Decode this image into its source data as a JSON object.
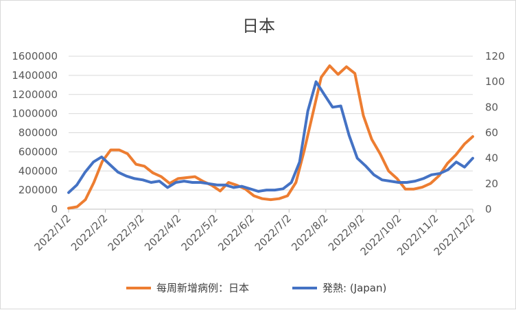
{
  "chart_data": {
    "type": "line",
    "title": "日本",
    "x_ticks": [
      "2022/1/2",
      "2022/2/2",
      "2022/3/2",
      "2022/4/2",
      "2022/5/2",
      "2022/6/2",
      "2022/7/2",
      "2022/8/2",
      "2022/9/2",
      "2022/10/2",
      "2022/11/2",
      "2022/12/2"
    ],
    "y_left": {
      "min": 0,
      "max": 1600000,
      "step": 200000,
      "ticks": [
        "0",
        "200000",
        "400000",
        "600000",
        "800000",
        "1000000",
        "1200000",
        "1400000",
        "1600000"
      ]
    },
    "y_right": {
      "min": 0,
      "max": 120,
      "step": 20,
      "ticks": [
        "0",
        "20",
        "40",
        "60",
        "80",
        "100",
        "120"
      ]
    },
    "grid": true,
    "legend_position": "bottom",
    "series": [
      {
        "name": "每周新增病例：日本",
        "axis": "left",
        "color": "#ED7D31",
        "values": [
          10000,
          25000,
          100000,
          280000,
          500000,
          620000,
          620000,
          580000,
          470000,
          450000,
          380000,
          340000,
          270000,
          320000,
          330000,
          340000,
          290000,
          250000,
          190000,
          280000,
          250000,
          210000,
          140000,
          110000,
          100000,
          110000,
          140000,
          280000,
          620000,
          1000000,
          1380000,
          1500000,
          1410000,
          1490000,
          1420000,
          980000,
          730000,
          580000,
          400000,
          320000,
          210000,
          210000,
          230000,
          270000,
          350000,
          480000,
          570000,
          680000,
          760000
        ]
      },
      {
        "name": "発熱: (Japan)",
        "axis": "right",
        "color": "#4472C4",
        "values": [
          13,
          19,
          29,
          37,
          41,
          35,
          29,
          26,
          24,
          23,
          21,
          22,
          17,
          21,
          22,
          21,
          21,
          20,
          19,
          19,
          17,
          18,
          16,
          14,
          15,
          15,
          16,
          21,
          37,
          77,
          100,
          90,
          80,
          81,
          58,
          40,
          34,
          27,
          23,
          22,
          21,
          21,
          22,
          24,
          27,
          28,
          31,
          37,
          33,
          40
        ]
      }
    ]
  }
}
